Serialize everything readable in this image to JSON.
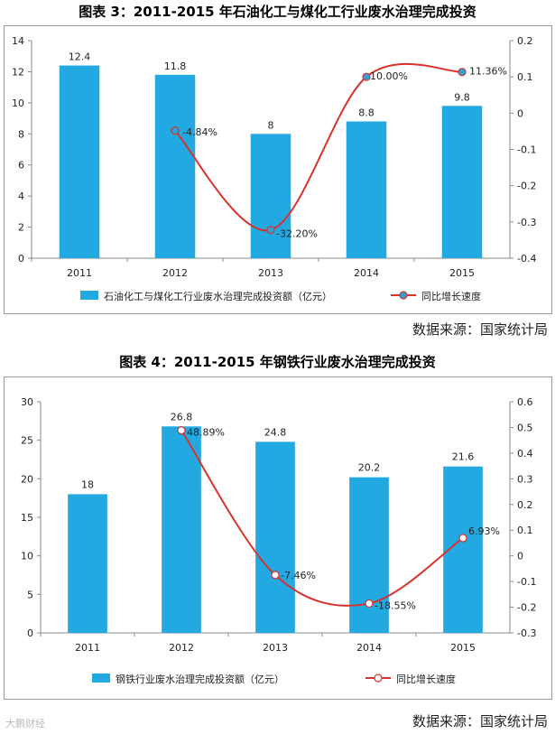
{
  "watermark": "大鹏财经",
  "chart_data": [
    {
      "type": "bar",
      "title": "图表 3：2011-2015 年石油化工与煤化工行业废水治理完成投资",
      "categories": [
        "2011",
        "2012",
        "2013",
        "2014",
        "2015"
      ],
      "series": [
        {
          "name": "石油化工与煤化工行业废水治理完成投资额（亿元）",
          "type": "bar",
          "axis": "left",
          "values": [
            12.4,
            11.8,
            8,
            8.8,
            9.8
          ],
          "labels": [
            "12.4",
            "11.8",
            "8",
            "8.8",
            "9.8"
          ]
        },
        {
          "name": "同比增长速度",
          "type": "line",
          "axis": "right",
          "values": [
            null,
            -0.0484,
            -0.322,
            0.1,
            0.1136
          ],
          "labels": [
            null,
            "-4.84%",
            "-32.20%",
            "10.00%",
            "11.36%"
          ]
        }
      ],
      "ylim": [
        0,
        14
      ],
      "y_ticks": [
        "0",
        "2",
        "4",
        "6",
        "8",
        "10",
        "12",
        "14"
      ],
      "y2lim": [
        -0.4,
        0.2
      ],
      "y2_ticks": [
        "-0.4",
        "-0.3",
        "-0.2",
        "-0.1",
        "0",
        "0.1",
        "0.2"
      ],
      "y2_tick_values": [
        -0.4,
        -0.3,
        -0.2,
        -0.1,
        0,
        0.1,
        0.2
      ],
      "legend_position": "bottom",
      "source": "数据来源：国家统计局",
      "colors": {
        "bar": "#22a9e1",
        "line": "#d9322c",
        "marker": "#2aa3dc"
      }
    },
    {
      "type": "bar",
      "title": "图表 4：2011-2015 年钢铁行业废水治理完成投资",
      "categories": [
        "2011",
        "2012",
        "2013",
        "2014",
        "2015"
      ],
      "series": [
        {
          "name": "钢铁行业废水治理完成投资额（亿元）",
          "type": "bar",
          "axis": "left",
          "values": [
            18,
            26.8,
            24.8,
            20.2,
            21.6
          ],
          "labels": [
            "18",
            "26.8",
            "24.8",
            "20.2",
            "21.6"
          ]
        },
        {
          "name": "同比增长速度",
          "type": "line",
          "axis": "right",
          "values": [
            null,
            0.4889,
            -0.0746,
            -0.1855,
            0.0693
          ],
          "labels": [
            null,
            "48.89%",
            "-7.46%",
            "-18.55%",
            "6.93%"
          ]
        }
      ],
      "ylim": [
        0,
        30
      ],
      "y_ticks": [
        "0",
        "5",
        "10",
        "15",
        "20",
        "25",
        "30"
      ],
      "y2lim": [
        -0.3,
        0.6
      ],
      "y2_ticks": [
        "-0.3",
        "-0.2",
        "-0.1",
        "0",
        "0.1",
        "0.2",
        "0.3",
        "0.4",
        "0.5",
        "0.6"
      ],
      "y2_tick_values": [
        -0.3,
        -0.2,
        -0.1,
        0,
        0.1,
        0.2,
        0.3,
        0.4,
        0.5,
        0.6
      ],
      "legend_position": "bottom",
      "source": "数据来源：国家统计局",
      "colors": {
        "bar": "#22a9e1",
        "line": "#d9322c",
        "marker": "#ffffff"
      }
    }
  ]
}
